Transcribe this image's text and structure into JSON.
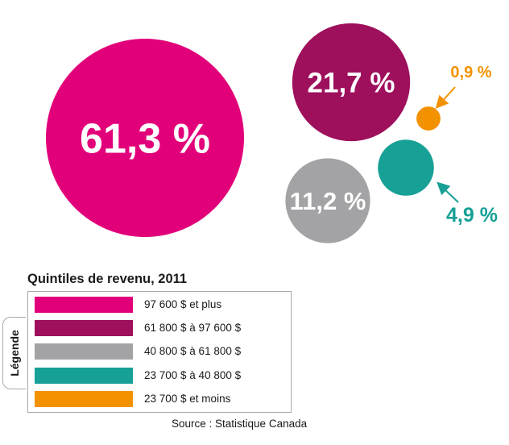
{
  "chart_data": {
    "type": "bubble",
    "title": "Quintiles de revenu, 2011",
    "series": [
      {
        "name": "97 600 $ et plus",
        "value": 61.3,
        "label": "61,3 %",
        "color": "#e2007a"
      },
      {
        "name": "61 800 $ à 97 600 $",
        "value": 21.7,
        "label": "21,7 %",
        "color": "#9e0f5c"
      },
      {
        "name": "40 800 $ à 61 800 $",
        "value": 11.2,
        "label": "11,2 %",
        "color": "#a3a3a5"
      },
      {
        "name": "23 700 $ à 40 800 $",
        "value": 4.9,
        "label": "4,9 %",
        "color": "#16a096"
      },
      {
        "name": "23 700 $ et moins",
        "value": 0.9,
        "label": "0,9 %",
        "color": "#f39200"
      }
    ],
    "legend": {
      "position": "bottom-left",
      "tab_label": "Légende"
    },
    "source": "Source : Statistique Canada"
  }
}
